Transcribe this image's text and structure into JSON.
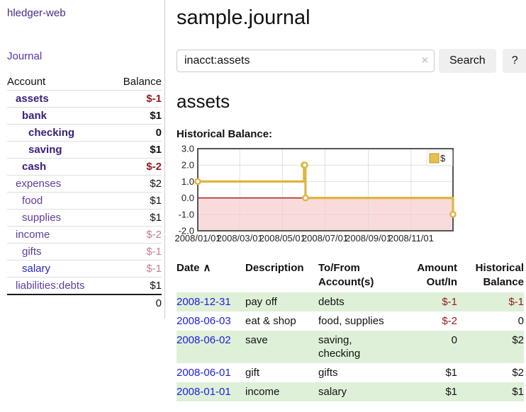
{
  "app": {
    "brand": "hledger-web",
    "nav_journal": "Journal"
  },
  "header": {
    "title": "sample.journal"
  },
  "search": {
    "value": "inacct:assets",
    "clear_icon": "×",
    "button": "Search",
    "help_button": "?"
  },
  "main": {
    "heading": "assets",
    "chart_label": "Historical Balance:"
  },
  "sidebar": {
    "accounts_header": {
      "account": "Account",
      "balance": "Balance"
    },
    "accounts": [
      {
        "name": "assets",
        "depth": 1,
        "bold": true,
        "blue": false,
        "balance": "$-1",
        "balance_style": "neg-strong"
      },
      {
        "name": "bank",
        "depth": 2,
        "bold": true,
        "blue": false,
        "balance": "$1",
        "balance_style": "pos"
      },
      {
        "name": "checking",
        "depth": 3,
        "bold": true,
        "blue": false,
        "balance": "0",
        "balance_style": "pos"
      },
      {
        "name": "saving",
        "depth": 3,
        "bold": true,
        "blue": false,
        "balance": "$1",
        "balance_style": "pos"
      },
      {
        "name": "cash",
        "depth": 2,
        "bold": true,
        "blue": false,
        "balance": "$-2",
        "balance_style": "neg-strong"
      },
      {
        "name": "expenses",
        "depth": 1,
        "bold": false,
        "blue": false,
        "balance": "$2",
        "balance_style": "pos"
      },
      {
        "name": "food",
        "depth": 2,
        "bold": false,
        "blue": false,
        "balance": "$1",
        "balance_style": "pos"
      },
      {
        "name": "supplies",
        "depth": 2,
        "bold": false,
        "blue": false,
        "balance": "$1",
        "balance_style": "pos"
      },
      {
        "name": "income",
        "depth": 1,
        "bold": false,
        "blue": false,
        "balance": "$-2",
        "balance_style": "neg-soft"
      },
      {
        "name": "gifts",
        "depth": 2,
        "bold": false,
        "blue": false,
        "balance": "$-1",
        "balance_style": "neg-soft"
      },
      {
        "name": "salary",
        "depth": 2,
        "bold": false,
        "blue": true,
        "balance": "$-1",
        "balance_style": "neg-soft"
      },
      {
        "name": "liabilities:debts",
        "depth": 1,
        "bold": false,
        "blue": false,
        "balance": "$1",
        "balance_style": "pos"
      }
    ],
    "total": "0"
  },
  "chart_data": {
    "type": "line",
    "step": true,
    "title": "Historical Balance:",
    "series": [
      {
        "name": "$",
        "color": "#e0b440",
        "points": [
          [
            "2008-01-01",
            1
          ],
          [
            "2008-06-01",
            2
          ],
          [
            "2008-06-02",
            2
          ],
          [
            "2008-06-03",
            0
          ],
          [
            "2008-12-31",
            -1
          ]
        ]
      }
    ],
    "x_domain": [
      "2008-01-01",
      "2008-12-31"
    ],
    "xticks": [
      "2008/01/01",
      "2008/03/01",
      "2008/05/01",
      "2008/07/01",
      "2008/09/01",
      "2008/11/01"
    ],
    "yticks": [
      "3.0",
      "2.0",
      "1.0",
      "0.0",
      "-1.0",
      "-2.0"
    ],
    "ylim": [
      -2,
      3
    ],
    "grid": true,
    "legend_position": "top-right",
    "negative_fill": "#fadbdb",
    "zero_line_color": "#990000",
    "grid_color": "#d8d8d8",
    "border_color": "#555555"
  },
  "register": {
    "columns": [
      {
        "label": "Date",
        "sortable": true,
        "align": "left"
      },
      {
        "label": "Description",
        "sortable": false,
        "align": "left"
      },
      {
        "label": "To/From Account(s)",
        "sortable": false,
        "align": "left"
      },
      {
        "label": "Amount Out/In",
        "sortable": false,
        "align": "right"
      },
      {
        "label": "Historical Balance",
        "sortable": false,
        "align": "right"
      }
    ],
    "sort_icon": "∧",
    "rows": [
      {
        "date": "2008-12-31",
        "description": "pay off",
        "accounts": "debts",
        "amount": "$-1",
        "amount_neg": true,
        "balance": "$-1",
        "balance_neg": true
      },
      {
        "date": "2008-06-03",
        "description": "eat & shop",
        "accounts": "food, supplies",
        "amount": "$-2",
        "amount_neg": true,
        "balance": "0",
        "balance_neg": false
      },
      {
        "date": "2008-06-02",
        "description": "save",
        "accounts": "saving, checking",
        "amount": "0",
        "amount_neg": false,
        "balance": "$2",
        "balance_neg": false
      },
      {
        "date": "2008-06-01",
        "description": "gift",
        "accounts": "gifts",
        "amount": "$1",
        "amount_neg": false,
        "balance": "$2",
        "balance_neg": false
      },
      {
        "date": "2008-01-01",
        "description": "income",
        "accounts": "salary",
        "amount": "$1",
        "amount_neg": false,
        "balance": "$1",
        "balance_neg": false
      }
    ]
  },
  "colors": {
    "accent_purple": "#4b2a8a",
    "link_blue": "#1d1de0",
    "negative_strong": "#951919",
    "negative_soft": "#c2808f",
    "row_stripe_green": "#dff0d8",
    "chart_gold": "#e0b440",
    "chart_negative_bg": "#fadbdb"
  }
}
